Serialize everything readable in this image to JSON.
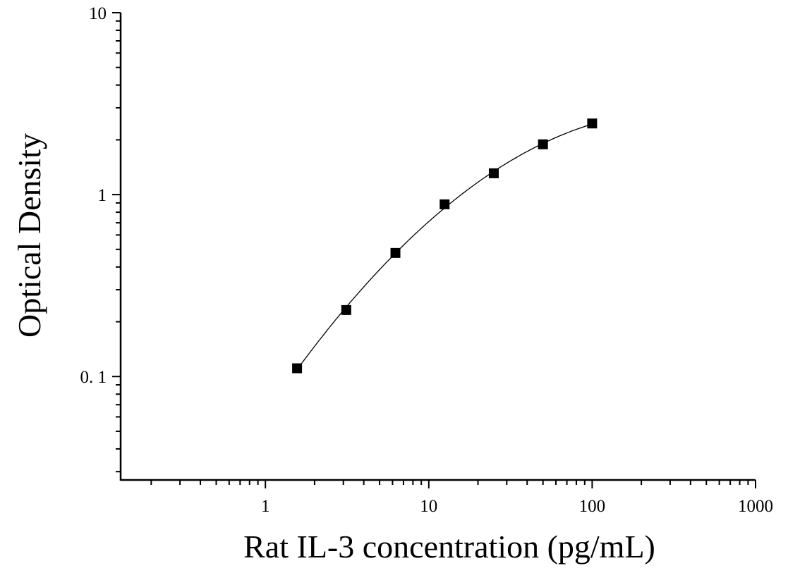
{
  "chart_data": {
    "type": "scatter",
    "title": "",
    "xlabel": "Rat IL-3 concentration (pg/mL)",
    "ylabel": "Optical Density",
    "x_scale": "log",
    "y_scale": "log",
    "xlim": [
      0.13,
      1000
    ],
    "ylim": [
      0.027,
      10
    ],
    "x_ticks": [
      {
        "value": 1,
        "label": "1"
      },
      {
        "value": 10,
        "label": "10"
      },
      {
        "value": 100,
        "label": "100"
      },
      {
        "value": 1000,
        "label": "1000"
      }
    ],
    "y_ticks": [
      {
        "value": 0.1,
        "label": "0. 1"
      },
      {
        "value": 1,
        "label": "1"
      },
      {
        "value": 10,
        "label": "10"
      }
    ],
    "grid": false,
    "legend": "none",
    "marker": "square",
    "color": "#000000",
    "series": [
      {
        "x": [
          1.5625,
          3.125,
          6.25,
          12.5,
          25,
          50,
          100
        ],
        "y": [
          0.111,
          0.232,
          0.478,
          0.884,
          1.31,
          1.89,
          2.46
        ],
        "fit_curve": true
      }
    ]
  }
}
